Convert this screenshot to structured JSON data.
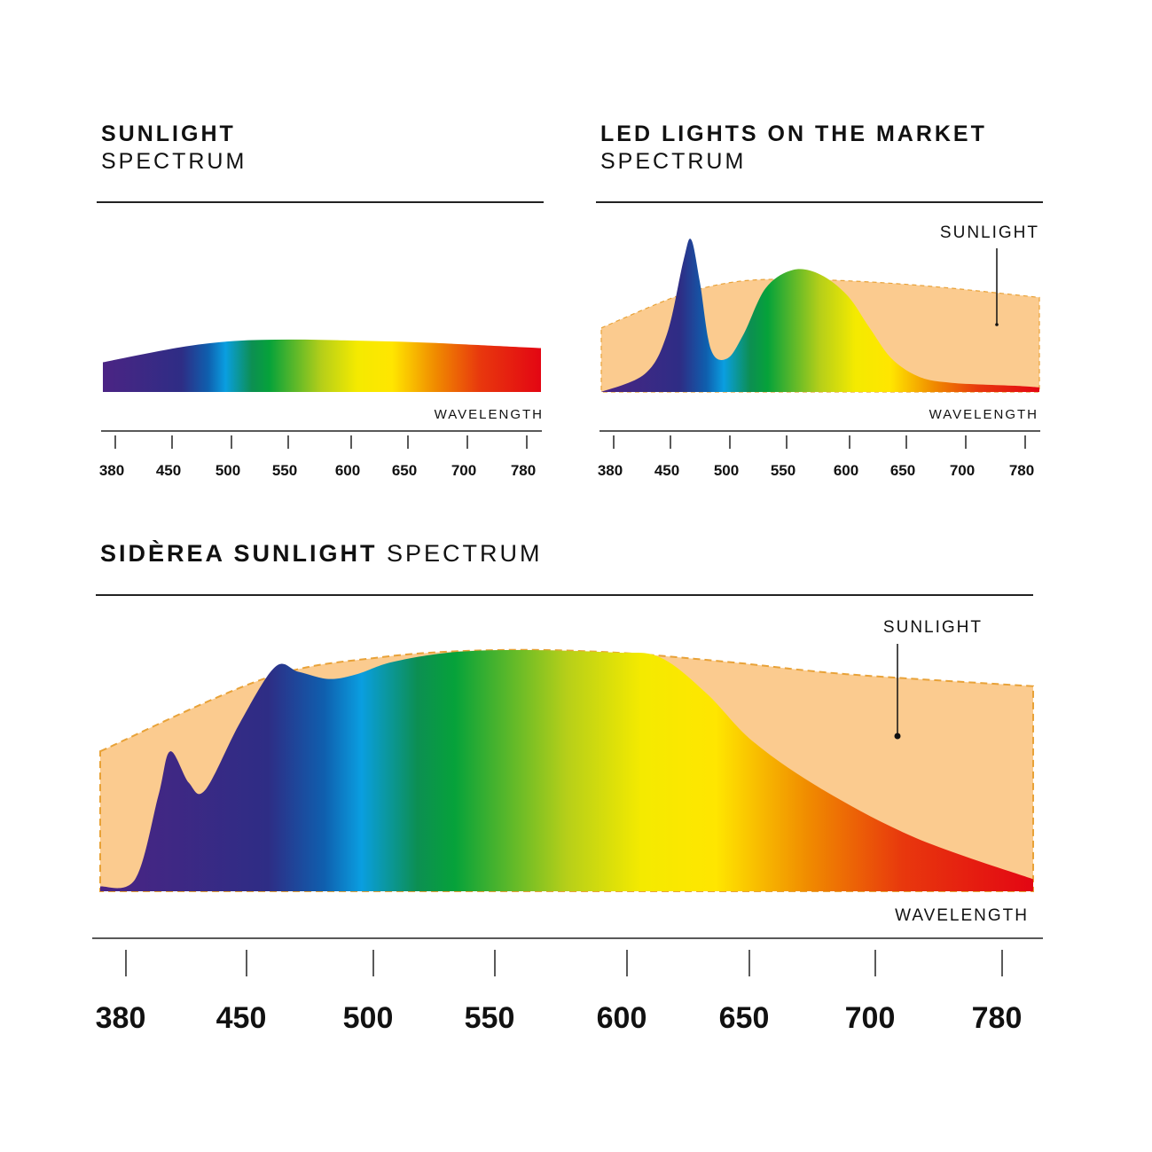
{
  "panels": {
    "sunlight": {
      "title_bold": "SUNLIGHT",
      "title_light": "SPECTRUM"
    },
    "led": {
      "title_bold": "LED LIGHTS ON THE MARKET",
      "title_light": "SPECTRUM"
    },
    "siderea": {
      "title_bold": "SIDÈREA SUNLIGHT",
      "title_light": "SPECTRUM"
    }
  },
  "colors": {
    "sunlight_fill": "#fbcb8f",
    "sunlight_stroke": "#e8a238",
    "spectrum_stops": [
      "#4b2484",
      "#2e2d85",
      "#0f5fae",
      "#0a9ee0",
      "#0c8f52",
      "#06a23a",
      "#b6cf19",
      "#f4ea00",
      "#ffe600",
      "#f08a00",
      "#e8380d",
      "#e30613"
    ]
  },
  "chart_data": [
    {
      "type": "area",
      "title": "SUNLIGHT SPECTRUM",
      "xlabel": "WAVELENGTH",
      "tick_labels": [
        "380",
        "450",
        "500",
        "550",
        "600",
        "650",
        "700",
        "780"
      ],
      "series": [
        {
          "x": [
            380,
            450,
            500,
            550,
            600,
            650,
            700,
            780
          ],
          "y": [
            0.42,
            0.63,
            0.72,
            0.74,
            0.73,
            0.71,
            0.68,
            0.62
          ]
        }
      ]
    },
    {
      "type": "area",
      "title": "LED LIGHTS ON THE MARKET SPECTRUM",
      "xlabel": "WAVELENGTH",
      "tick_labels": [
        "380",
        "450",
        "500",
        "550",
        "600",
        "650",
        "700",
        "780"
      ],
      "annotation": "SUNLIGHT",
      "series": [
        {
          "name": "SUNLIGHT",
          "x": [
            380,
            450,
            500,
            550,
            600,
            650,
            700,
            780
          ],
          "y": [
            0.42,
            0.63,
            0.72,
            0.74,
            0.73,
            0.71,
            0.68,
            0.62
          ]
        },
        {
          "x": [
            380,
            420,
            440,
            455,
            462,
            470,
            480,
            495,
            510,
            530,
            555,
            580,
            605,
            625,
            645,
            670,
            700,
            760,
            780
          ],
          "y": [
            0.0,
            0.12,
            0.38,
            0.86,
            1.0,
            0.72,
            0.28,
            0.22,
            0.38,
            0.68,
            0.8,
            0.77,
            0.63,
            0.42,
            0.22,
            0.1,
            0.06,
            0.04,
            0.03
          ]
        }
      ]
    },
    {
      "type": "area",
      "title": "SIDÈREA SUNLIGHT SPECTRUM",
      "xlabel": "WAVELENGTH",
      "tick_labels": [
        "380",
        "450",
        "500",
        "550",
        "600",
        "650",
        "700",
        "780"
      ],
      "annotation": "SUNLIGHT",
      "series": [
        {
          "name": "SUNLIGHT",
          "x": [
            380,
            450,
            500,
            550,
            600,
            650,
            700,
            780
          ],
          "y": [
            0.58,
            0.88,
            0.97,
            1.0,
            0.99,
            0.95,
            0.9,
            0.85
          ]
        },
        {
          "x": [
            380,
            395,
            405,
            410,
            418,
            425,
            440,
            455,
            465,
            478,
            490,
            505,
            530,
            560,
            600,
            620,
            640,
            660,
            690,
            730,
            780
          ],
          "y": [
            0.02,
            0.05,
            0.4,
            0.58,
            0.45,
            0.42,
            0.7,
            0.93,
            0.91,
            0.88,
            0.9,
            0.95,
            0.99,
            1.0,
            0.99,
            0.97,
            0.82,
            0.62,
            0.42,
            0.22,
            0.05
          ]
        }
      ]
    }
  ]
}
